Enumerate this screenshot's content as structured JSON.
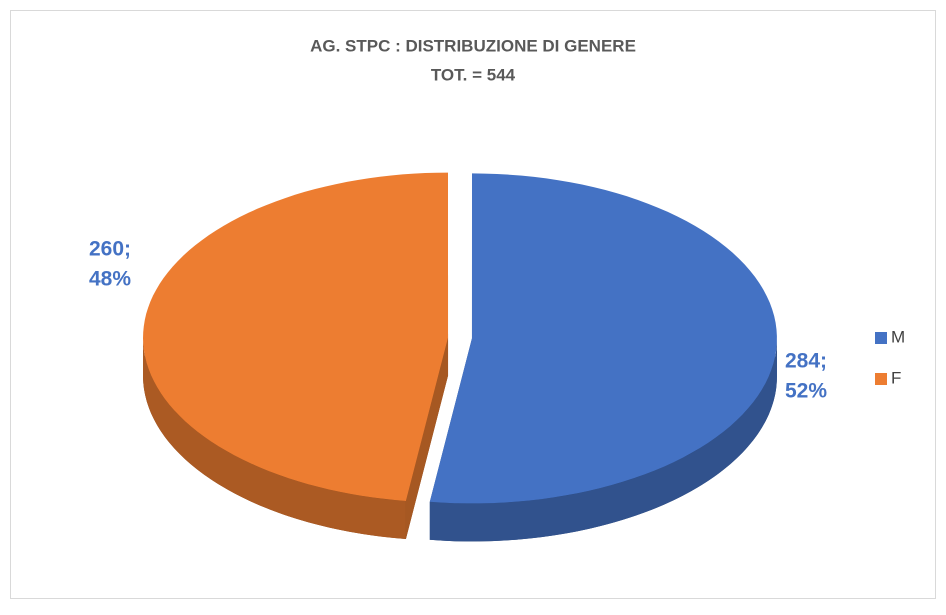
{
  "chart_data": {
    "type": "pie",
    "title": "AG. STPC : DISTRIBUZIONE DI GENERE",
    "subtitle": "TOT. = 544",
    "categories": [
      "M",
      "F"
    ],
    "values": [
      284,
      260
    ],
    "value_labels": [
      [
        "284;",
        "52%"
      ],
      [
        "260;",
        "48%"
      ]
    ],
    "colors": [
      "#4472c4",
      "#ed7d31"
    ],
    "legend": "right"
  }
}
